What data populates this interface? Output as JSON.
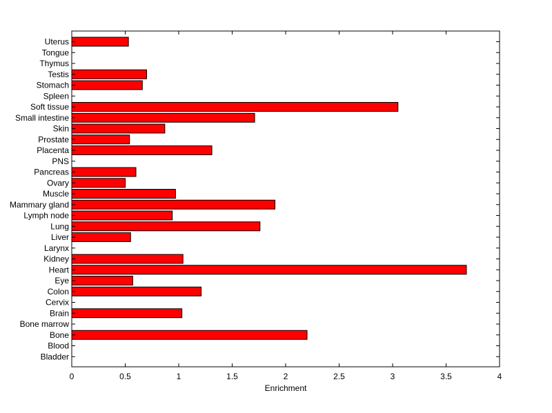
{
  "chart_data": {
    "type": "bar",
    "orientation": "horizontal",
    "xlabel": "Enrichment",
    "ylabel": "",
    "title": "",
    "xlim": [
      0,
      4
    ],
    "xticks": [
      0,
      0.5,
      1,
      1.5,
      2,
      2.5,
      3,
      3.5,
      4
    ],
    "xtick_labels": [
      "0",
      "0.5",
      "1",
      "1.5",
      "2",
      "2.5",
      "3",
      "3.5",
      "4"
    ],
    "grid": false,
    "bar_color": "#ff0000",
    "bar_edge_color": "#000000",
    "categories": [
      "Uterus",
      "Tongue",
      "Thymus",
      "Testis",
      "Stomach",
      "Spleen",
      "Soft tissue",
      "Small intestine",
      "Skin",
      "Prostate",
      "Placenta",
      "PNS",
      "Pancreas",
      "Ovary",
      "Muscle",
      "Mammary gland",
      "Lymph node",
      "Lung",
      "Liver",
      "Larynx",
      "Kidney",
      "Heart",
      "Eye",
      "Colon",
      "Cervix",
      "Brain",
      "Bone marrow",
      "Bone",
      "Blood",
      "Bladder"
    ],
    "values": [
      0.53,
      0,
      0,
      0.7,
      0.66,
      0,
      3.05,
      1.71,
      0.87,
      0.54,
      1.31,
      0,
      0.6,
      0.5,
      0.97,
      1.9,
      0.94,
      1.76,
      0.55,
      0,
      1.04,
      3.69,
      0.57,
      1.21,
      0,
      1.03,
      0,
      2.2,
      0,
      0
    ]
  }
}
